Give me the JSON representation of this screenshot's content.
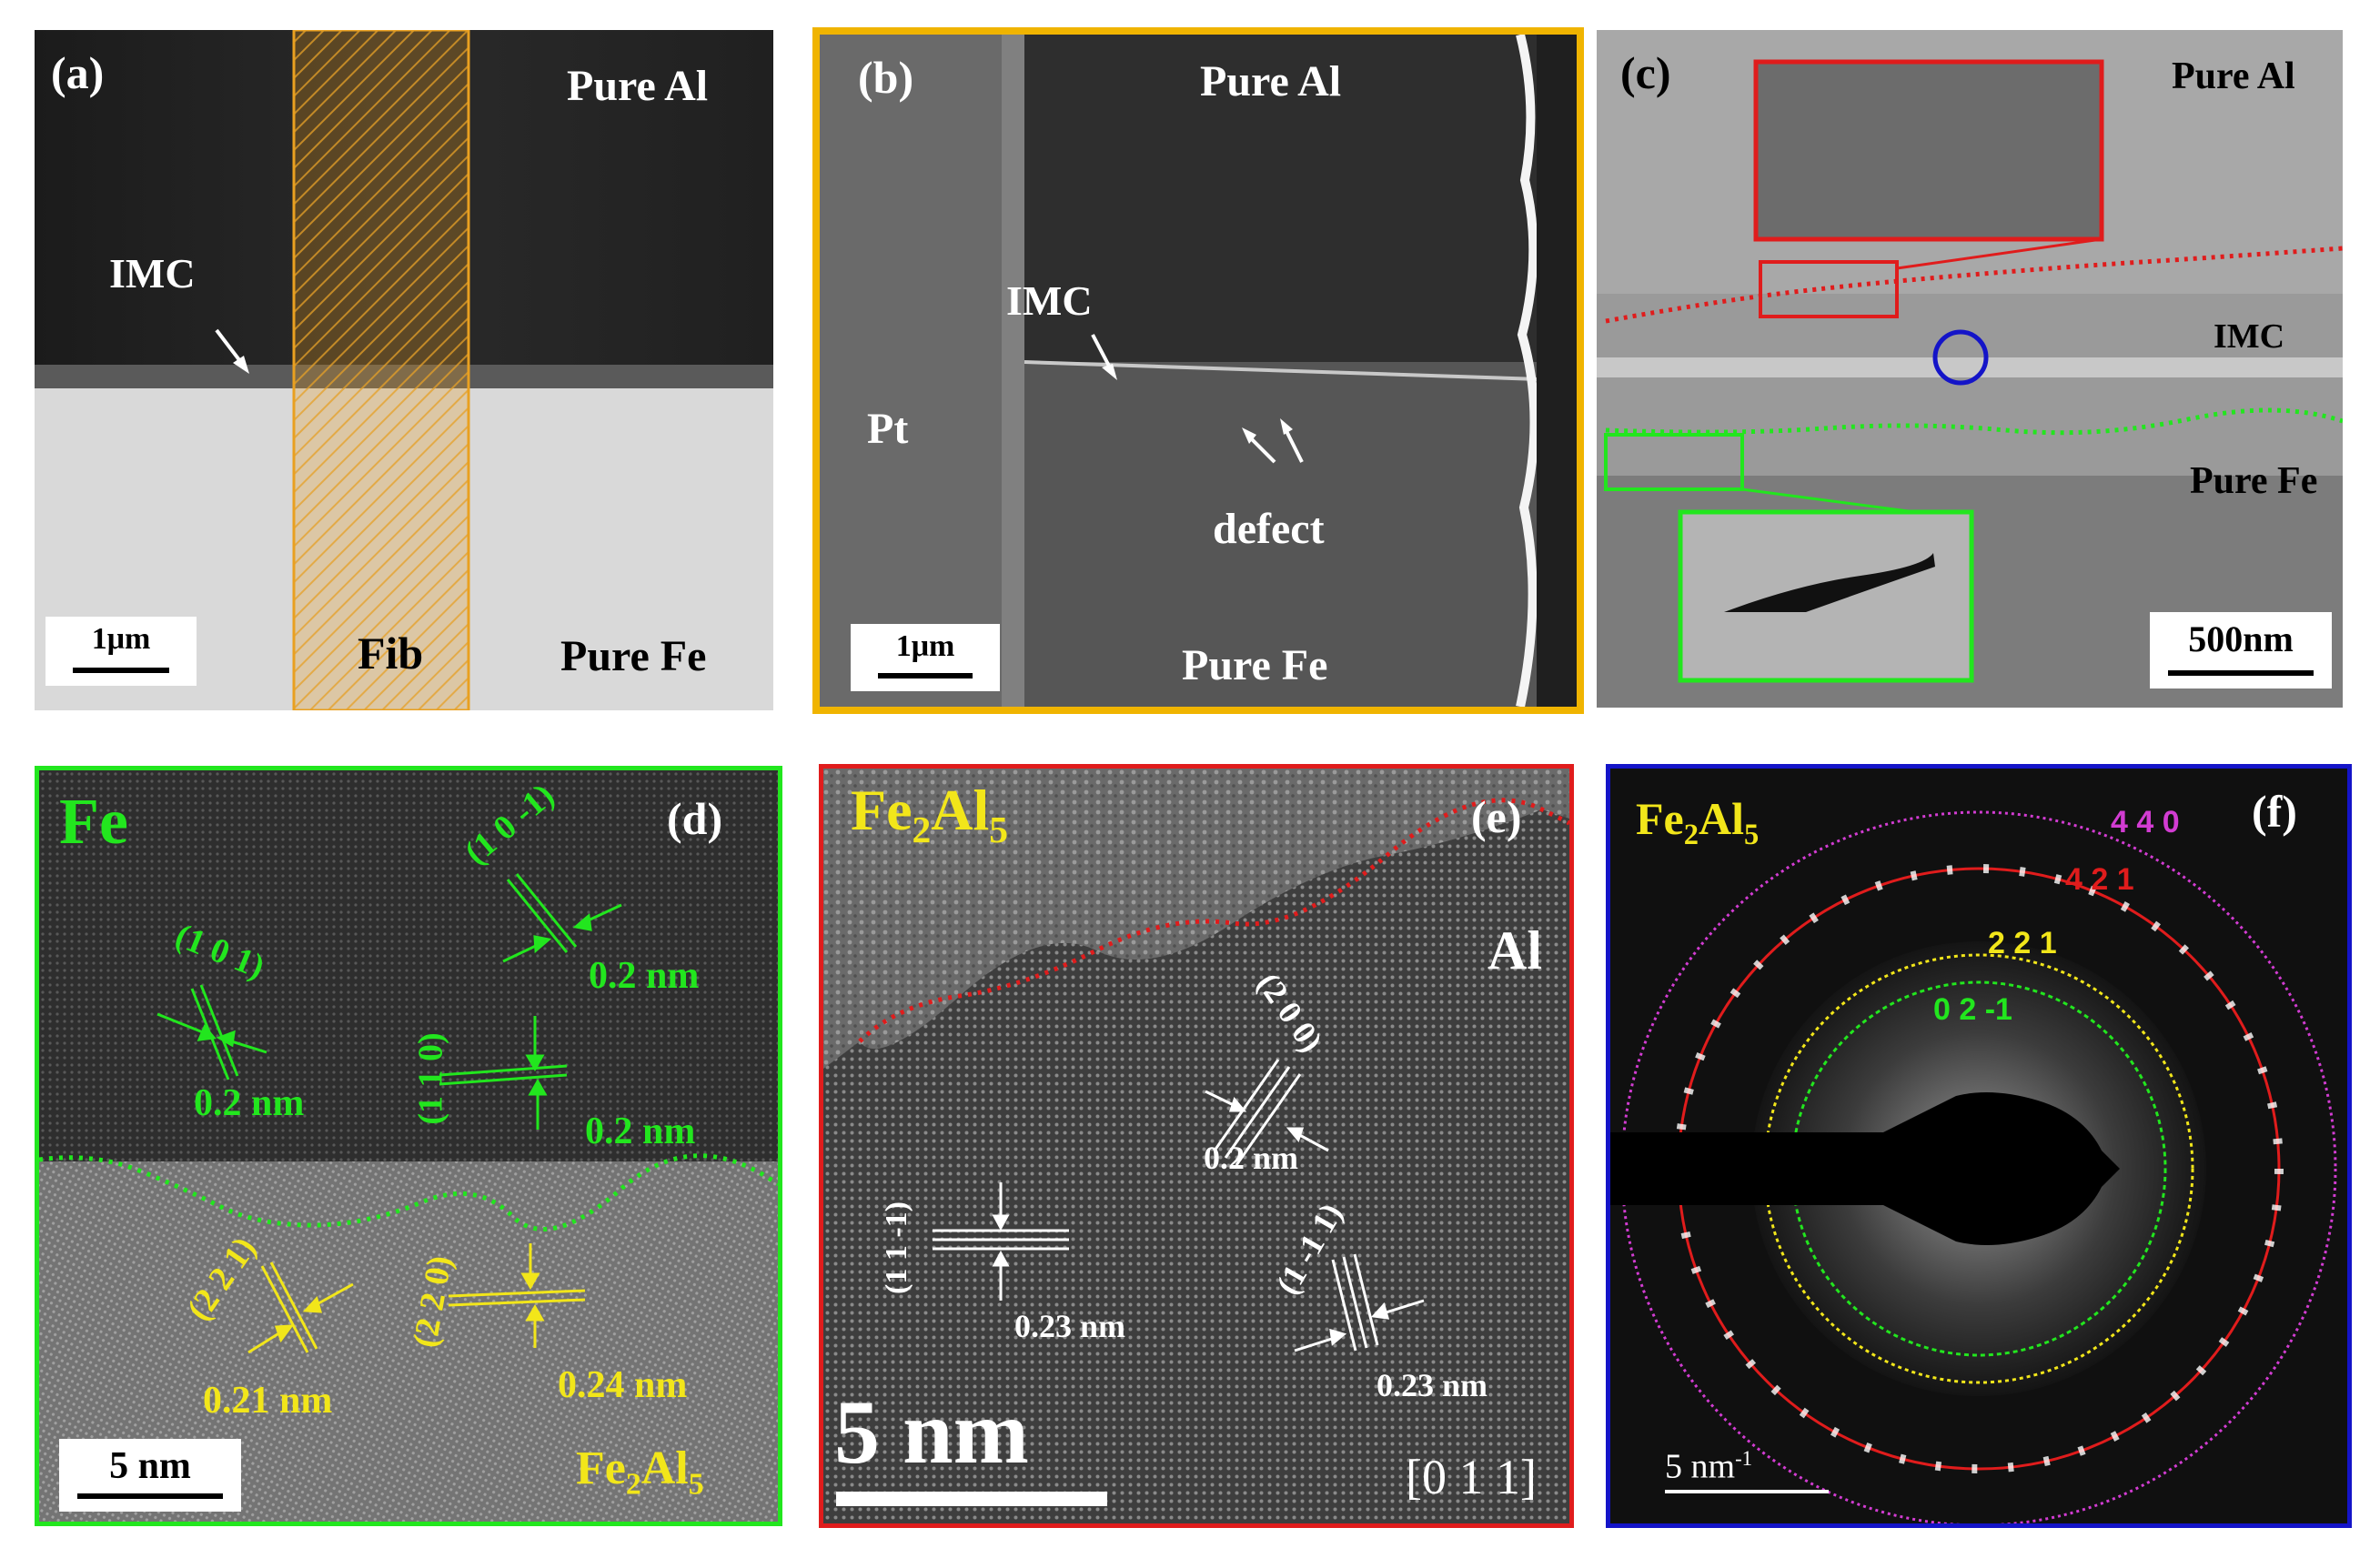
{
  "colors": {
    "green": "#22e61e",
    "yellow": "#f2e61a",
    "red": "#e01c1c",
    "blue": "#1414c8",
    "orange": "#f0b400",
    "magenta": "#d23cd2"
  },
  "panel_a": {
    "tag": "(a)",
    "top_phase": "Pure Al",
    "bottom_phase": "Pure Fe",
    "imc": "IMC",
    "fib": "Fib",
    "scale": "1μm"
  },
  "panel_b": {
    "tag": "(b)",
    "top_phase": "Pure Al",
    "bottom_phase": "Pure Fe",
    "imc": "IMC",
    "pt": "Pt",
    "defect": "defect",
    "scale": "1μm"
  },
  "panel_c": {
    "tag": "(c)",
    "top_phase": "Pure Al",
    "imc": "IMC",
    "bottom_phase": "Pure Fe",
    "scale": "500nm"
  },
  "panel_d": {
    "tag": "(d)",
    "phase_top": "Fe",
    "phase_bottom_base": "Fe",
    "phase_bottom_sub1": "2",
    "phase_bottom_mid": "Al",
    "phase_bottom_sub2": "5",
    "plane_101": "(1 0 1)",
    "d_101": "0.2 nm",
    "plane_10m1": "(1 0 -1)",
    "d_10m1": "0.2 nm",
    "plane_110": "(1 1 0)",
    "d_110": "0.2 nm",
    "plane_221": "(2 2 1)",
    "d_221": "0.21 nm",
    "plane_220": "(2 2 0)",
    "d_220": "0.24 nm",
    "scale": "5 nm"
  },
  "panel_e": {
    "tag": "(e)",
    "phase_base": "Fe",
    "phase_sub1": "2",
    "phase_mid": "Al",
    "phase_sub2": "5",
    "al": "Al",
    "plane_200": "(2 0 0)",
    "d_200": "0.2 nm",
    "plane_11m1": "(1 1 -1)",
    "d_11m1": "0.23 nm",
    "plane_1m11": "(1 -1 1)",
    "d_1m11": "0.23 nm",
    "zone": "[0 1 1]",
    "scale": "5 nm"
  },
  "panel_f": {
    "tag": "(f)",
    "phase_base": "Fe",
    "phase_sub1": "2",
    "phase_mid": "Al",
    "phase_sub2": "5",
    "ring_440": "4 4 0",
    "ring_421": "4 2 1",
    "ring_221": "2 2 1",
    "ring_02m1": "0 2 -1",
    "scale_base": "5 nm",
    "scale_sup": "-1"
  }
}
